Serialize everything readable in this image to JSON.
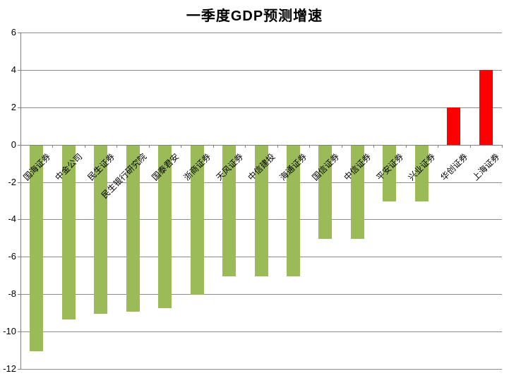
{
  "chart_data": {
    "type": "bar",
    "title": "一季度GDP预测增速",
    "categories": [
      "国海证券",
      "中金公司",
      "民生证券",
      "民生银行研究院",
      "国泰君安",
      "浙商证券",
      "天风证券",
      "中信建投",
      "海通证券",
      "国信证券",
      "中信证券",
      "平安证券",
      "兴业证券",
      "华创证券",
      "上海证券"
    ],
    "values": [
      -11,
      -9.3,
      -9,
      -8.9,
      -8.7,
      -8,
      -7,
      -7,
      -7,
      -5,
      -5,
      -3,
      -3,
      2,
      4
    ],
    "xlabel": "",
    "ylabel": "",
    "ylim": [
      -12,
      6
    ],
    "yticks": [
      6,
      4,
      2,
      0,
      -2,
      -4,
      -6,
      -8,
      -10,
      -12
    ],
    "grid": "horizontal",
    "legend": "none",
    "colors": {
      "negative_bar": "#9BBB59",
      "positive_bar": "#FF0000",
      "gridline": "#8B8B8B",
      "axis": "#7F7F7F",
      "title_text": "#000000",
      "label_text": "#000000",
      "background": "#FFFFFF"
    }
  }
}
